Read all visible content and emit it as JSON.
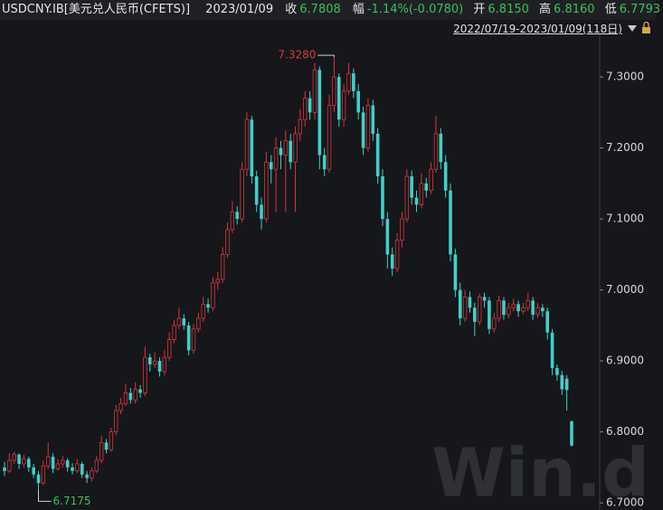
{
  "header": {
    "symbol": "USDCNY.IB[美元兑人民币(CFETS)]",
    "date": "2023/01/09",
    "close_label": "收",
    "close": "6.7808",
    "change_label": "幅",
    "change": "-1.14%(-0.0780)",
    "open_label": "开",
    "open": "6.8150",
    "high_label": "高",
    "high": "6.8160",
    "low_label": "低",
    "low": "6.7793",
    "range": "2022/07/19-2023/01/09(118日)",
    "watermark": "Win.d"
  },
  "chart_data": {
    "type": "candlestick",
    "up_color": "#d8363a",
    "down_color": "#3fd0c9",
    "ylim": [
      6.69,
      7.36
    ],
    "yticks": [
      {
        "value": 6.7,
        "label": "6.7000"
      },
      {
        "value": 6.8,
        "label": "6.8000"
      },
      {
        "value": 6.9,
        "label": "6.9000"
      },
      {
        "value": 7.0,
        "label": "7.0000"
      },
      {
        "value": 7.1,
        "label": "7.1000"
      },
      {
        "value": 7.2,
        "label": "7.2000"
      },
      {
        "value": 7.3,
        "label": "7.3000"
      }
    ],
    "annotations": [
      {
        "index": 68,
        "value": 7.328,
        "label": "7.3280",
        "color": "#e0363a"
      },
      {
        "index": 7,
        "value": 6.7175,
        "label": "6.7175",
        "color": "#39c25a"
      }
    ],
    "open": [
      6.75,
      6.745,
      6.76,
      6.768,
      6.755,
      6.762,
      6.75,
      6.74,
      6.728,
      6.752,
      6.765,
      6.748,
      6.755,
      6.76,
      6.75,
      6.745,
      6.755,
      6.74,
      6.735,
      6.745,
      6.76,
      6.785,
      6.775,
      6.8,
      6.83,
      6.84,
      6.855,
      6.845,
      6.86,
      6.855,
      6.905,
      6.895,
      6.9,
      6.885,
      6.905,
      6.93,
      6.95,
      6.96,
      6.95,
      6.915,
      6.945,
      6.96,
      6.98,
      6.975,
      7.01,
      7.015,
      7.05,
      7.085,
      7.11,
      7.1,
      7.17,
      7.24,
      7.16,
      7.12,
      7.1,
      7.18,
      7.17,
      7.2,
      7.19,
      7.21,
      7.18,
      7.22,
      7.24,
      7.27,
      7.25,
      7.31,
      7.19,
      7.17,
      7.26,
      7.3,
      7.24,
      7.28,
      7.305,
      7.28,
      7.25,
      7.2,
      7.26,
      7.22,
      7.16,
      7.1,
      7.05,
      7.03,
      7.07,
      7.1,
      7.16,
      7.13,
      7.12,
      7.15,
      7.14,
      7.17,
      7.22,
      7.18,
      7.14,
      7.05,
      7.0,
      6.96,
      6.99,
      6.975,
      6.955,
      6.99,
      6.985,
      6.945,
      6.96,
      6.985,
      6.965,
      6.975,
      6.98,
      6.97,
      6.975,
      6.985,
      6.965,
      6.975,
      6.97,
      6.94,
      6.89,
      6.88,
      6.875,
      6.815
    ],
    "high": [
      6.758,
      6.77,
      6.772,
      6.77,
      6.768,
      6.765,
      6.755,
      6.745,
      6.76,
      6.785,
      6.77,
      6.762,
      6.766,
      6.763,
      6.756,
      6.762,
      6.758,
      6.745,
      6.75,
      6.766,
      6.795,
      6.79,
      6.806,
      6.838,
      6.848,
      6.868,
      6.862,
      6.87,
      6.866,
      6.92,
      6.91,
      6.912,
      6.905,
      6.915,
      6.94,
      6.958,
      6.975,
      6.966,
      6.955,
      6.952,
      6.968,
      6.99,
      6.988,
      7.018,
      7.025,
      7.06,
      7.095,
      7.125,
      7.118,
      7.18,
      7.25,
      7.245,
      7.168,
      7.13,
      7.195,
      7.19,
      7.215,
      7.21,
      7.225,
      7.22,
      7.23,
      7.255,
      7.28,
      7.28,
      7.32,
      7.315,
      7.2,
      7.275,
      7.328,
      7.305,
      7.29,
      7.32,
      7.312,
      7.29,
      7.258,
      7.27,
      7.268,
      7.228,
      7.17,
      7.11,
      7.06,
      7.08,
      7.11,
      7.17,
      7.168,
      7.14,
      7.165,
      7.158,
      7.18,
      7.245,
      7.228,
      7.19,
      7.15,
      7.058,
      7.01,
      7.0,
      6.998,
      6.982,
      6.995,
      6.996,
      6.99,
      6.968,
      6.992,
      6.99,
      6.982,
      6.988,
      6.985,
      6.982,
      6.996,
      6.99,
      6.982,
      6.98,
      6.975,
      6.945,
      6.895,
      6.886,
      6.88,
      6.816
    ],
    "low": [
      6.738,
      6.742,
      6.755,
      6.748,
      6.75,
      6.744,
      6.735,
      6.7175,
      6.725,
      6.748,
      6.742,
      6.745,
      6.75,
      6.744,
      6.74,
      6.742,
      6.735,
      6.728,
      6.73,
      6.742,
      6.756,
      6.77,
      6.772,
      6.795,
      6.825,
      6.836,
      6.84,
      6.84,
      6.848,
      6.85,
      6.885,
      6.89,
      6.878,
      6.88,
      6.9,
      6.925,
      6.945,
      6.944,
      6.908,
      6.91,
      6.94,
      6.955,
      6.968,
      6.97,
      7.0,
      7.01,
      7.045,
      7.08,
      7.092,
      7.095,
      7.16,
      7.15,
      7.11,
      7.085,
      7.095,
      7.15,
      7.11,
      7.17,
      7.11,
      7.17,
      7.11,
      7.21,
      7.23,
      7.24,
      7.24,
      7.17,
      7.16,
      7.165,
      7.25,
      7.23,
      7.23,
      7.275,
      7.27,
      7.24,
      7.19,
      7.195,
      7.21,
      7.15,
      7.09,
      7.03,
      7.02,
      7.025,
      7.06,
      7.095,
      7.12,
      7.11,
      7.115,
      7.13,
      7.135,
      7.165,
      7.17,
      7.13,
      7.04,
      6.99,
      6.95,
      6.955,
      6.968,
      6.935,
      6.95,
      6.975,
      6.938,
      6.94,
      6.955,
      6.958,
      6.96,
      6.97,
      6.962,
      6.966,
      6.97,
      6.958,
      6.96,
      6.962,
      6.93,
      6.88,
      6.872,
      6.852,
      6.83,
      6.7793
    ],
    "close": [
      6.745,
      6.76,
      6.768,
      6.755,
      6.762,
      6.75,
      6.74,
      6.728,
      6.752,
      6.765,
      6.748,
      6.755,
      6.76,
      6.75,
      6.745,
      6.755,
      6.74,
      6.735,
      6.745,
      6.76,
      6.785,
      6.775,
      6.8,
      6.83,
      6.84,
      6.855,
      6.845,
      6.86,
      6.855,
      6.905,
      6.895,
      6.9,
      6.885,
      6.905,
      6.93,
      6.95,
      6.96,
      6.95,
      6.915,
      6.945,
      6.96,
      6.98,
      6.975,
      7.01,
      7.015,
      7.05,
      7.085,
      7.11,
      7.1,
      7.17,
      7.24,
      7.16,
      7.12,
      7.1,
      7.18,
      7.17,
      7.2,
      7.19,
      7.21,
      7.18,
      7.22,
      7.24,
      7.27,
      7.25,
      7.31,
      7.19,
      7.17,
      7.26,
      7.3,
      7.24,
      7.28,
      7.305,
      7.28,
      7.25,
      7.2,
      7.26,
      7.22,
      7.16,
      7.1,
      7.05,
      7.03,
      7.07,
      7.1,
      7.16,
      7.13,
      7.12,
      7.15,
      7.14,
      7.17,
      7.22,
      7.18,
      7.14,
      7.05,
      7.0,
      6.96,
      6.99,
      6.975,
      6.955,
      6.99,
      6.985,
      6.945,
      6.96,
      6.985,
      6.965,
      6.975,
      6.98,
      6.97,
      6.975,
      6.985,
      6.965,
      6.975,
      6.97,
      6.94,
      6.89,
      6.88,
      6.86,
      6.859,
      6.7808
    ]
  }
}
